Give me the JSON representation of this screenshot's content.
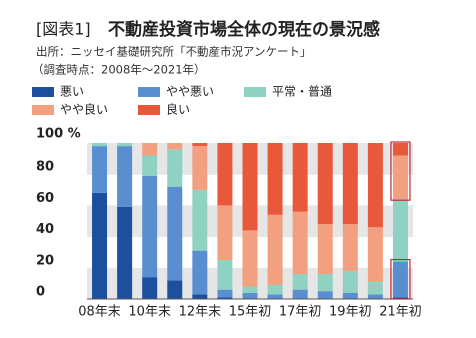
{
  "chart_data": {
    "type": "stacked_bar",
    "figure_label": "[図表1]",
    "title": "不動産投資市場全体の現在の景況感",
    "source": "出所：ニッセイ基礎研究所「不動産市況アンケート」",
    "note": "（調査時点：2008年～2021年）",
    "categories": [
      "08年末",
      null,
      "10年末",
      null,
      "12年末",
      null,
      "15年初",
      null,
      "17年初",
      null,
      "19年初",
      null,
      "21年初"
    ],
    "series": [
      {
        "name": "悪い",
        "color": "#1d4f9f",
        "values": [
          68,
          59,
          14,
          12,
          3,
          1,
          0,
          0,
          0,
          0,
          0,
          0,
          1
        ]
      },
      {
        "name": "やや悪い",
        "color": "#5b8ed0",
        "values": [
          30,
          39,
          65,
          60,
          28,
          5,
          4,
          3,
          6,
          5,
          4,
          3,
          23
        ]
      },
      {
        "name": "平常・普通",
        "color": "#8fd2c2",
        "values": [
          2,
          2,
          13,
          24,
          39,
          19,
          4,
          6,
          10,
          11,
          14,
          8,
          40
        ]
      },
      {
        "name": "やや良い",
        "color": "#f2a07f",
        "values": [
          0,
          0,
          8,
          4,
          28,
          35,
          36,
          45,
          40,
          32,
          30,
          35,
          28
        ]
      },
      {
        "name": "良い",
        "color": "#e8583a",
        "values": [
          0,
          0,
          0,
          0,
          2,
          40,
          56,
          46,
          44,
          52,
          52,
          54,
          8
        ]
      }
    ],
    "ylim": [
      0,
      100
    ],
    "yticks": [
      0,
      20,
      40,
      60,
      80,
      {
        "value": 100,
        "label": "100 %"
      }
    ],
    "grid": "bands"
  }
}
